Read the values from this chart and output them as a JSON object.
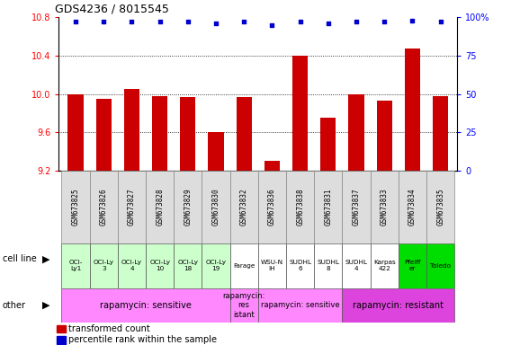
{
  "title": "GDS4236 / 8015545",
  "samples": [
    "GSM673825",
    "GSM673826",
    "GSM673827",
    "GSM673828",
    "GSM673829",
    "GSM673830",
    "GSM673832",
    "GSM673836",
    "GSM673838",
    "GSM673831",
    "GSM673837",
    "GSM673833",
    "GSM673834",
    "GSM673835"
  ],
  "bar_values": [
    10.0,
    9.95,
    10.05,
    9.98,
    9.97,
    9.6,
    9.97,
    9.3,
    10.4,
    9.75,
    10.0,
    9.93,
    10.47,
    9.98
  ],
  "dot_values": [
    97,
    97,
    97,
    97,
    97,
    96,
    97,
    95,
    97,
    96,
    97,
    97,
    98,
    97
  ],
  "ylim_left": [
    9.2,
    10.8
  ],
  "ylim_right": [
    0,
    100
  ],
  "yticks_left": [
    9.2,
    9.6,
    10.0,
    10.4,
    10.8
  ],
  "yticks_right": [
    0,
    25,
    50,
    75,
    100
  ],
  "bar_color": "#cc0000",
  "dot_color": "#0000cc",
  "cell_line_labels": [
    "OCI-\nLy1",
    "OCI-Ly\n3",
    "OCI-Ly\n4",
    "OCI-Ly\n10",
    "OCI-Ly\n18",
    "OCI-Ly\n19",
    "Farage",
    "WSU-N\nIH",
    "SUDHL\n6",
    "SUDHL\n8",
    "SUDHL\n4",
    "Karpas\n422",
    "Pfeiff\ner",
    "Toledo"
  ],
  "cell_line_colors": [
    "#ccffcc",
    "#ccffcc",
    "#ccffcc",
    "#ccffcc",
    "#ccffcc",
    "#ccffcc",
    "#ffffff",
    "#ffffff",
    "#ffffff",
    "#ffffff",
    "#ffffff",
    "#ffffff",
    "#00dd00",
    "#00dd00"
  ],
  "other_groups": [
    {
      "start": 0,
      "end": 5,
      "text": "rapamycin: sensitive",
      "color": "#ff88ff",
      "fontsize": 7
    },
    {
      "start": 6,
      "end": 6,
      "text": "rapamycin:\nres\nistant",
      "color": "#ff88ff",
      "fontsize": 6
    },
    {
      "start": 7,
      "end": 9,
      "text": "rapamycin: sensitive",
      "color": "#ff88ff",
      "fontsize": 6
    },
    {
      "start": 10,
      "end": 13,
      "text": "rapamycin: resistant",
      "color": "#dd44dd",
      "fontsize": 7
    }
  ],
  "grid_yticks": [
    9.6,
    10.0,
    10.4
  ],
  "bar_bottom": 9.2
}
